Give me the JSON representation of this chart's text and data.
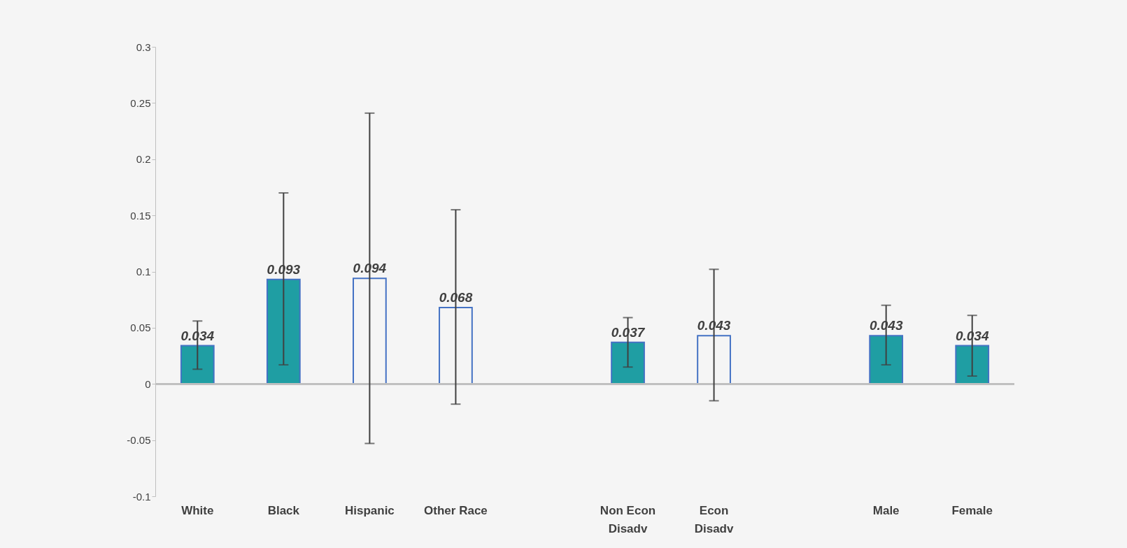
{
  "chart_data": {
    "type": "bar",
    "categories": [
      "White",
      "Black",
      "Hispanic",
      "Other Race",
      null,
      "Non Econ Disadv",
      "Econ Disadv",
      null,
      "Male",
      "Female"
    ],
    "values": [
      0.034,
      0.093,
      0.094,
      0.068,
      null,
      0.037,
      0.043,
      null,
      0.043,
      0.034
    ],
    "colors": [
      "#1f9ea3",
      "#1f9ea3",
      "#f5f5f5",
      "#f5f5f5",
      null,
      "#1f9ea3",
      "#f5f5f5",
      null,
      "#1f9ea3",
      "#1f9ea3"
    ],
    "errors": [
      [
        0.013,
        0.056
      ],
      [
        0.017,
        0.17
      ],
      [
        -0.053,
        0.241
      ],
      [
        -0.018,
        0.155
      ],
      null,
      [
        0.015,
        0.059
      ],
      [
        -0.015,
        0.102
      ],
      null,
      [
        0.017,
        0.07
      ],
      [
        0.007,
        0.061
      ]
    ],
    "ylim": [
      -0.1,
      0.3
    ],
    "yticks": [
      -0.1,
      -0.05,
      0,
      0.05,
      0.1,
      0.15,
      0.2,
      0.25,
      0.3
    ],
    "data_labels": true,
    "grid": false
  }
}
